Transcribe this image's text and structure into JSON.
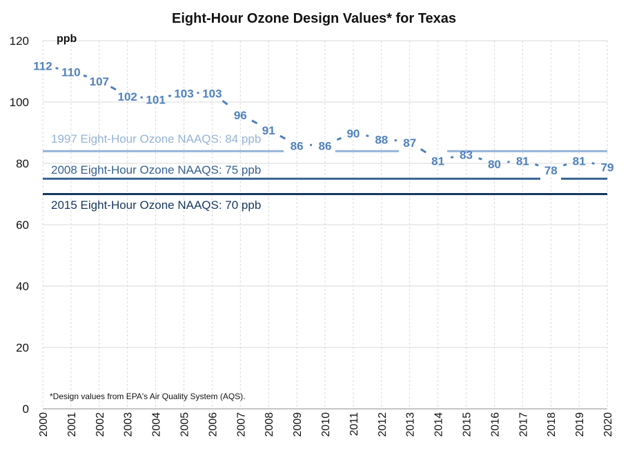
{
  "chart_data": {
    "type": "line",
    "title": "Eight-Hour Ozone Design Values* for Texas",
    "ylabel": "ppb",
    "ylim": [
      0,
      120
    ],
    "yticks": [
      0,
      20,
      40,
      60,
      80,
      100,
      120
    ],
    "grid": true,
    "x": [
      "2000",
      "2001",
      "2002",
      "2003",
      "2004",
      "2005",
      "2006",
      "2007",
      "2008",
      "2009",
      "2010",
      "2011",
      "2012",
      "2013",
      "2014",
      "2015",
      "2016",
      "2017",
      "2018",
      "2019",
      "2020"
    ],
    "series": [
      {
        "values": [
          112,
          110,
          107,
          102,
          101,
          103,
          103,
          96,
          91,
          86,
          86,
          90,
          88,
          87,
          81,
          83,
          80,
          81,
          78,
          81,
          79
        ],
        "color": "#4f81bd"
      }
    ],
    "reference_lines": [
      {
        "label": "1997 Eight-Hour Ozone NAAQS: 84 ppb",
        "value": 84,
        "color": "#95b3d7"
      },
      {
        "label": "2008 Eight-Hour Ozone NAAQS: 75 ppb",
        "value": 75,
        "color": "#366092"
      },
      {
        "label": "2015 Eight-Hour Ozone NAAQS: 70 ppb",
        "value": 70,
        "color": "#17375e"
      }
    ],
    "footnote": "*Design values from EPA's Air Quality System (AQS)."
  }
}
